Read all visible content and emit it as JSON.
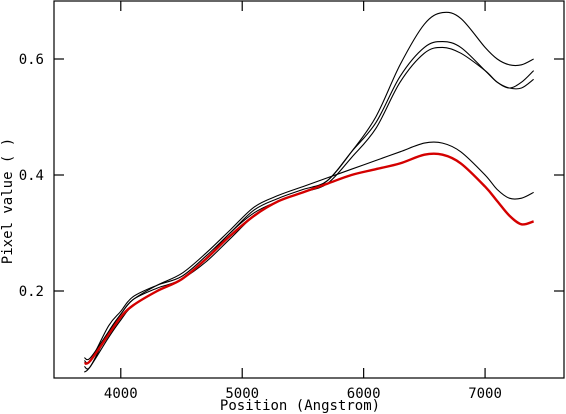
{
  "chart_data": {
    "type": "line",
    "title": "",
    "xlabel": "Position (Angstrom)",
    "ylabel": "Pixel value ( )",
    "xlim": [
      3450,
      7650
    ],
    "ylim": [
      0.05,
      0.7
    ],
    "xticks": [
      4000,
      5000,
      6000,
      7000
    ],
    "xtick_labels": [
      "4000",
      "5000",
      "6000",
      "7000"
    ],
    "yticks": [
      0.2,
      0.4,
      0.6
    ],
    "ytick_labels": [
      "0.2",
      "0.4",
      "0.6"
    ],
    "grid": false,
    "series": [
      {
        "color": "#000000",
        "x": [
          3700,
          3750,
          3900,
          4000,
          4100,
          4300,
          4500,
          4700,
          4900,
          5100,
          5300,
          5500,
          5700,
          5900,
          6100,
          6300,
          6500,
          6650,
          6800,
          7000,
          7100,
          7200,
          7300,
          7400
        ],
        "y": [
          0.06,
          0.07,
          0.12,
          0.15,
          0.175,
          0.2,
          0.22,
          0.25,
          0.29,
          0.33,
          0.355,
          0.37,
          0.39,
          0.44,
          0.5,
          0.59,
          0.66,
          0.68,
          0.67,
          0.62,
          0.6,
          0.59,
          0.59,
          0.6
        ]
      },
      {
        "color": "#000000",
        "x": [
          3700,
          3750,
          3900,
          4000,
          4100,
          4300,
          4500,
          4700,
          4900,
          5100,
          5300,
          5500,
          5700,
          5900,
          6100,
          6300,
          6500,
          6650,
          6800,
          7000,
          7100,
          7200,
          7300,
          7400
        ],
        "y": [
          0.08,
          0.08,
          0.14,
          0.165,
          0.19,
          0.21,
          0.225,
          0.26,
          0.3,
          0.34,
          0.36,
          0.375,
          0.39,
          0.44,
          0.49,
          0.57,
          0.62,
          0.63,
          0.62,
          0.58,
          0.56,
          0.55,
          0.56,
          0.58
        ]
      },
      {
        "color": "#000000",
        "x": [
          3700,
          3750,
          3900,
          4000,
          4100,
          4300,
          4500,
          4700,
          4900,
          5100,
          5300,
          5500,
          5700,
          5900,
          6100,
          6300,
          6500,
          6650,
          6800,
          7000,
          7100,
          7200,
          7300,
          7400
        ],
        "y": [
          0.07,
          0.07,
          0.13,
          0.16,
          0.185,
          0.205,
          0.22,
          0.255,
          0.3,
          0.335,
          0.355,
          0.37,
          0.385,
          0.43,
          0.48,
          0.56,
          0.61,
          0.62,
          0.61,
          0.58,
          0.56,
          0.55,
          0.55,
          0.565
        ]
      },
      {
        "color": "#000000",
        "x": [
          3700,
          3750,
          3900,
          4000,
          4100,
          4300,
          4500,
          4700,
          4900,
          5100,
          5300,
          5500,
          5700,
          5900,
          6100,
          6300,
          6500,
          6650,
          6800,
          7000,
          7100,
          7200,
          7300,
          7400
        ],
        "y": [
          0.085,
          0.085,
          0.13,
          0.16,
          0.185,
          0.21,
          0.23,
          0.265,
          0.305,
          0.345,
          0.365,
          0.38,
          0.395,
          0.41,
          0.425,
          0.44,
          0.455,
          0.455,
          0.44,
          0.4,
          0.375,
          0.36,
          0.36,
          0.37
        ]
      },
      {
        "color": "#d40000",
        "x": [
          3700,
          3750,
          3900,
          4000,
          4100,
          4300,
          4500,
          4700,
          4900,
          5100,
          5300,
          5500,
          5700,
          5900,
          6100,
          6300,
          6500,
          6650,
          6800,
          7000,
          7100,
          7200,
          7300,
          7400
        ],
        "y": [
          0.075,
          0.08,
          0.125,
          0.155,
          0.175,
          0.2,
          0.22,
          0.255,
          0.295,
          0.33,
          0.355,
          0.37,
          0.385,
          0.4,
          0.41,
          0.42,
          0.435,
          0.435,
          0.42,
          0.38,
          0.355,
          0.33,
          0.315,
          0.32
        ]
      }
    ]
  }
}
